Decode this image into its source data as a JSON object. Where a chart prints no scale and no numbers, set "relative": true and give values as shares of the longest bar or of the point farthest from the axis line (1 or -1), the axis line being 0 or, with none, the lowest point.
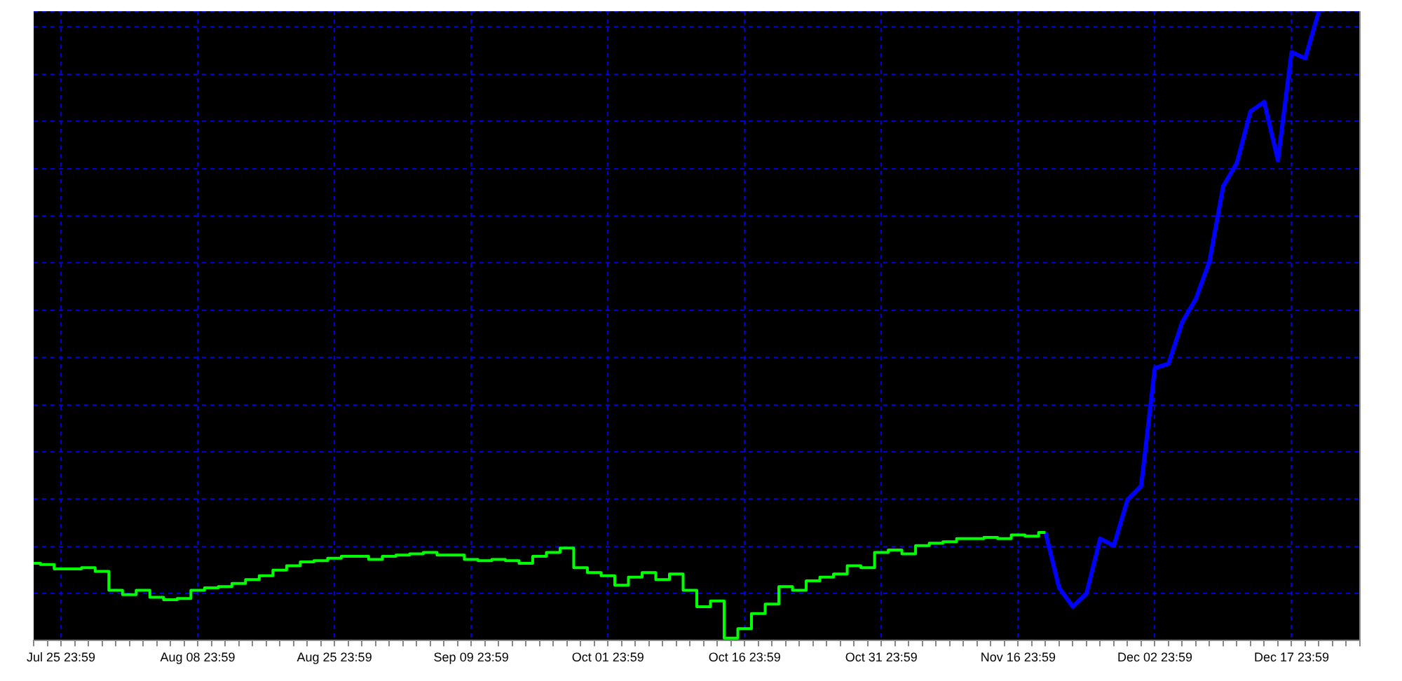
{
  "chart_data": {
    "type": "line",
    "relative": true,
    "grid": true,
    "legend": false,
    "categories": [
      null,
      null,
      "Jul 25 23:59",
      null,
      null,
      null,
      null,
      null,
      null,
      null,
      null,
      null,
      "Aug 08 23:59",
      null,
      null,
      null,
      null,
      null,
      null,
      null,
      null,
      null,
      "Aug 25 23:59",
      null,
      null,
      null,
      null,
      null,
      null,
      null,
      null,
      null,
      "Sep 09 23:59",
      null,
      null,
      null,
      null,
      null,
      null,
      null,
      null,
      null,
      "Oct 01 23:59",
      null,
      null,
      null,
      null,
      null,
      null,
      null,
      null,
      null,
      "Oct 16 23:59",
      null,
      null,
      null,
      null,
      null,
      null,
      null,
      null,
      null,
      "Oct 31 23:59",
      null,
      null,
      null,
      null,
      null,
      null,
      null,
      null,
      null,
      "Nov 16 23:59",
      null,
      null,
      null,
      null,
      null,
      null,
      null,
      null,
      null,
      "Dec 02 23:59",
      null,
      null,
      null,
      null,
      null,
      null,
      null,
      null,
      null,
      "Dec 17 23:59",
      null,
      null,
      null,
      null,
      null
    ],
    "series": [
      {
        "type": "step",
        "color": "#00ff00",
        "values": [
          0.123,
          0.121,
          0.114,
          0.114,
          0.116,
          0.11,
          0.08,
          0.073,
          0.08,
          0.069,
          0.065,
          0.067,
          0.08,
          0.084,
          0.086,
          0.091,
          0.097,
          0.103,
          0.112,
          0.119,
          0.125,
          0.127,
          0.131,
          0.134,
          0.134,
          0.129,
          0.134,
          0.136,
          0.138,
          0.14,
          0.136,
          0.136,
          0.129,
          0.127,
          0.129,
          0.127,
          0.123,
          0.134,
          0.14,
          0.147,
          0.116,
          0.108,
          0.103,
          0.088,
          0.101,
          0.108,
          0.097,
          0.106,
          0.08,
          0.054,
          0.063,
          0.004,
          0.019,
          0.043,
          0.058,
          0.086,
          0.08,
          0.095,
          0.101,
          0.106,
          0.119,
          0.116,
          0.14,
          0.144,
          0.138,
          0.151,
          0.155,
          0.157,
          0.162,
          0.162,
          0.164,
          0.162,
          0.168,
          0.166,
          0.172,
          null,
          null,
          null,
          null,
          null,
          null,
          null,
          null,
          null,
          null,
          null,
          null,
          null,
          null,
          null,
          null,
          null,
          null,
          null,
          null,
          null,
          null,
          null
        ]
      },
      {
        "type": "line",
        "color": "#0000ff",
        "values": [
          null,
          null,
          null,
          null,
          null,
          null,
          null,
          null,
          null,
          null,
          null,
          null,
          null,
          null,
          null,
          null,
          null,
          null,
          null,
          null,
          null,
          null,
          null,
          null,
          null,
          null,
          null,
          null,
          null,
          null,
          null,
          null,
          null,
          null,
          null,
          null,
          null,
          null,
          null,
          null,
          null,
          null,
          null,
          null,
          null,
          null,
          null,
          null,
          null,
          null,
          null,
          null,
          null,
          null,
          null,
          null,
          null,
          null,
          null,
          null,
          null,
          null,
          null,
          null,
          null,
          null,
          null,
          null,
          null,
          null,
          null,
          null,
          null,
          null,
          0.172,
          0.084,
          0.054,
          0.075,
          0.162,
          0.151,
          0.224,
          0.246,
          0.433,
          0.44,
          0.506,
          0.543,
          0.603,
          0.722,
          0.759,
          0.841,
          0.856,
          0.763,
          0.935,
          0.925,
          1.0,
          null,
          null,
          null
        ]
      }
    ]
  }
}
